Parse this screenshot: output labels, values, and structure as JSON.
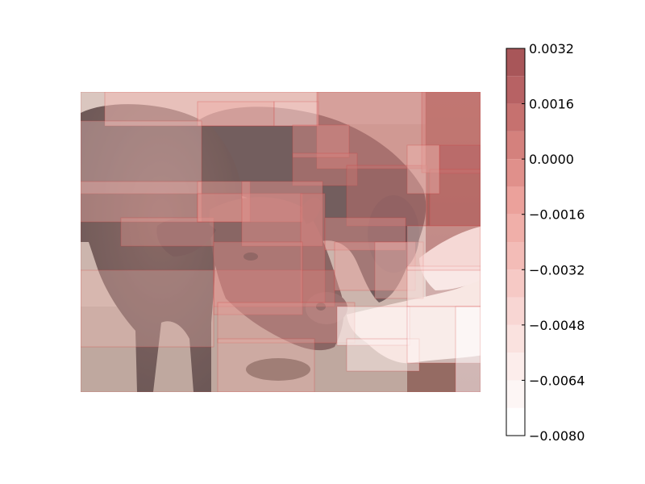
{
  "chart_data": {
    "type": "heatmap",
    "title": "",
    "xlabel": "",
    "ylabel": "",
    "image": {
      "subject": "two cows at a fence, one being hand-fed",
      "overlay": "semi-transparent red rectangular regions; darker red indicates higher attribution value"
    },
    "colorbar": {
      "colormap": "white-to-dark-red",
      "vmin": -0.008,
      "vmax": 0.0032,
      "ticks": [
        0.0032,
        0.0016,
        0.0,
        -0.0016,
        -0.0032,
        -0.0048,
        -0.0064,
        -0.008
      ],
      "tick_labels": [
        "0.0032",
        "0.0016",
        "0.0000",
        "−0.0016",
        "−0.0032",
        "−0.0048",
        "−0.0064",
        "−0.0080"
      ],
      "levels": [
        -0.008,
        -0.0072,
        -0.0064,
        -0.0056,
        -0.0048,
        -0.004,
        -0.0032,
        -0.0024,
        -0.0016,
        -0.0008,
        0.0,
        0.0008,
        0.0016,
        0.0024,
        0.0032
      ],
      "colors": [
        "#ffffff",
        "#fdf6f5",
        "#fcedeb",
        "#fae2df",
        "#f8d6d3",
        "#f6c9c5",
        "#f3bcb7",
        "#f0afa9",
        "#eba19b",
        "#e0908b",
        "#d4817d",
        "#c6716f",
        "#b76264",
        "#a85659"
      ]
    }
  }
}
